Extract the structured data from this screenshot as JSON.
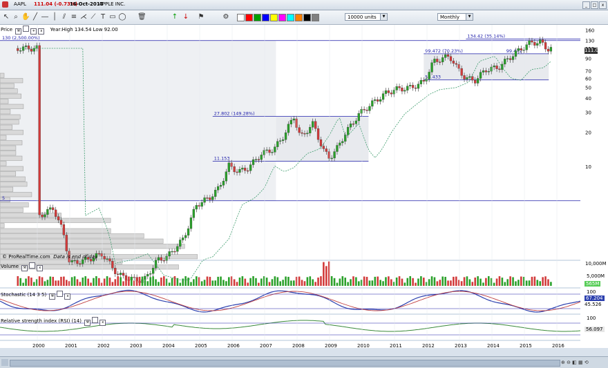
{
  "window": {
    "ticker": "AAPL",
    "price": "111.04 (-0.73%)",
    "date": "16-Oct-2015",
    "company": "APPLE INC."
  },
  "toolbar": {
    "units": "10000 units",
    "period": "Monthly",
    "colors": [
      "#ffffff",
      "#ff0000",
      "#00a000",
      "#0000ff",
      "#ffff00",
      "#ff00ff",
      "#00ffff",
      "#ff8000",
      "#000000",
      "#808080"
    ]
  },
  "price_panel": {
    "title": "Price",
    "info": "Year:High 134.54 Low 92.00",
    "credit": "© ProRealTime.com",
    "note": "Data is end of day"
  },
  "volume_panel": {
    "title": "Volume",
    "scale_top": "10,000M",
    "scale_mid": "5,000M",
    "tag": "565M"
  },
  "stoch_panel": {
    "title": "Stochastic (14 3 5)",
    "scale": "100",
    "tag1": "67.204",
    "tag2": "45.526"
  },
  "rsi_panel": {
    "title": "Relative strength index (RSI) (14)",
    "scale": "100",
    "tag": "56.097"
  },
  "chart_data": {
    "type": "candlestick",
    "title": "AAPL",
    "x_years": [
      "2000",
      "2001",
      "2002",
      "2003",
      "2004",
      "2005",
      "2006",
      "2007",
      "2008",
      "2009",
      "2010",
      "2011",
      "2012",
      "2013",
      "2014",
      "2015",
      "2016"
    ],
    "y_scale": "log",
    "y_ticks": [
      160,
      130,
      110,
      90,
      70,
      60,
      50,
      40,
      30,
      20,
      10
    ],
    "y_tick_labels": [
      "160",
      "130",
      "110",
      "90",
      "70",
      "60",
      "50",
      "40",
      "30",
      "20",
      "10"
    ],
    "last_price": "111.04",
    "annotations": [
      {
        "label": "130 (2,500.00%)",
        "value": 130
      },
      {
        "label": "5",
        "value": 5
      },
      {
        "label": "134.42 (35.14%)",
        "value": 134.42
      },
      {
        "label": "99.472 (70.23%)",
        "value": 99.472
      },
      {
        "label": "99.472",
        "value": 99.472
      },
      {
        "label": "58.433",
        "value": 58.433
      },
      {
        "label": "27.802 (149.28%)",
        "value": 27.802
      },
      {
        "label": "11.153",
        "value": 11.153
      }
    ],
    "monthly_close_approx": [
      [
        2000.0,
        3.6
      ],
      [
        2000.5,
        4.3
      ],
      [
        2000.8,
        2.6
      ],
      [
        2001.0,
        1.4
      ],
      [
        2001.5,
        1.5
      ],
      [
        2002.0,
        1.7
      ],
      [
        2002.5,
        1.1
      ],
      [
        2003.0,
        1.0
      ],
      [
        2003.3,
        1.0
      ],
      [
        2003.7,
        1.5
      ],
      [
        2004.0,
        1.6
      ],
      [
        2004.5,
        2.3
      ],
      [
        2004.9,
        4.6
      ],
      [
        2005.3,
        5.3
      ],
      [
        2005.6,
        6.5
      ],
      [
        2005.9,
        10.2
      ],
      [
        2006.2,
        9.0
      ],
      [
        2006.5,
        9.8
      ],
      [
        2006.9,
        13.0
      ],
      [
        2007.3,
        14.4
      ],
      [
        2007.6,
        19.0
      ],
      [
        2007.9,
        27.8
      ],
      [
        2008.1,
        18.0
      ],
      [
        2008.5,
        24.0
      ],
      [
        2008.8,
        14.0
      ],
      [
        2009.0,
        12.0
      ],
      [
        2009.2,
        14.0
      ],
      [
        2009.5,
        20.0
      ],
      [
        2009.9,
        29.0
      ],
      [
        2010.3,
        36.0
      ],
      [
        2010.7,
        44.0
      ],
      [
        2011.0,
        48.0
      ],
      [
        2011.5,
        50.0
      ],
      [
        2011.9,
        56.0
      ],
      [
        2012.2,
        85.0
      ],
      [
        2012.7,
        95.0
      ],
      [
        2012.9,
        76.0
      ],
      [
        2013.2,
        60.0
      ],
      [
        2013.5,
        58.0
      ],
      [
        2013.8,
        72.0
      ],
      [
        2014.2,
        75.0
      ],
      [
        2014.6,
        95.0
      ],
      [
        2014.9,
        110.0
      ],
      [
        2015.2,
        125.0
      ],
      [
        2015.5,
        126.0
      ],
      [
        2015.7,
        110.0
      ],
      [
        2015.8,
        111.04
      ]
    ]
  }
}
